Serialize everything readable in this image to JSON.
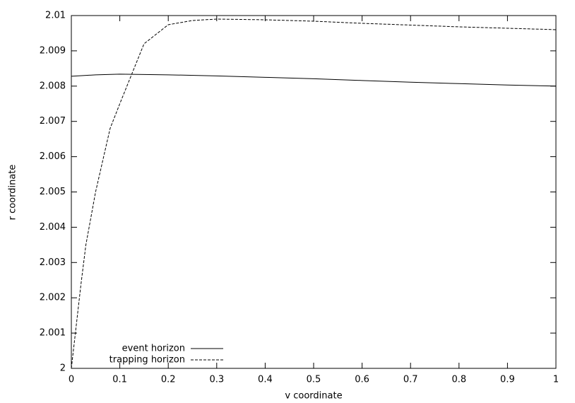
{
  "chart_data": {
    "type": "line",
    "x_label": "v coordinate",
    "y_label": "r coordinate",
    "xlim": [
      0,
      1
    ],
    "ylim": [
      2,
      2.01
    ],
    "xticks": [
      0,
      0.1,
      0.2,
      0.3,
      0.4,
      0.5,
      0.6,
      0.7,
      0.8,
      0.9,
      1
    ],
    "yticks": [
      2,
      2.001,
      2.002,
      2.003,
      2.004,
      2.005,
      2.006,
      2.007,
      2.008,
      2.009,
      2.01
    ],
    "legend": "bottom-left",
    "series": [
      {
        "name": "event horizon",
        "color": "#000000",
        "dash": false,
        "x": [
          0,
          0.05,
          0.1,
          0.2,
          0.3,
          0.4,
          0.5,
          0.6,
          0.7,
          0.8,
          0.9,
          1
        ],
        "values": [
          2.00828,
          2.00832,
          2.00834,
          2.00832,
          2.00829,
          2.00825,
          2.00821,
          2.00816,
          2.00811,
          2.00807,
          2.00803,
          2.008
        ]
      },
      {
        "name": "trapping horizon",
        "color": "#000000",
        "dash": true,
        "x": [
          0,
          0.01,
          0.02,
          0.03,
          0.05,
          0.08,
          0.1,
          0.15,
          0.2,
          0.25,
          0.3,
          0.4,
          0.5,
          0.6,
          0.7,
          0.8,
          0.9,
          1
        ],
        "values": [
          2,
          2.0012,
          2.0024,
          2.0035,
          2.005,
          2.0068,
          2.0075,
          2.0092,
          2.00974,
          2.00986,
          2.0099,
          2.00988,
          2.00984,
          2.00978,
          2.00973,
          2.00968,
          2.00964,
          2.0096
        ]
      }
    ]
  }
}
